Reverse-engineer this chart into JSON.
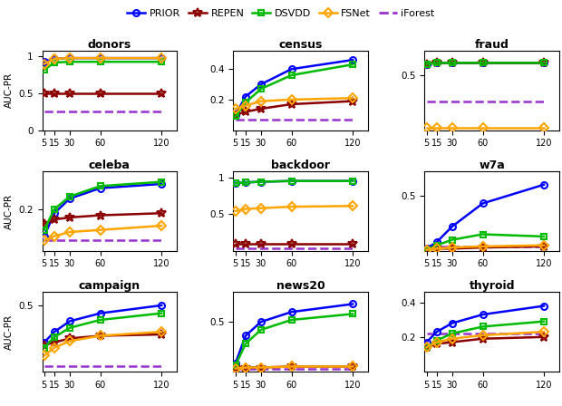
{
  "x": [
    5,
    15,
    30,
    60,
    120
  ],
  "subplots": {
    "donors": {
      "PRIOR": [
        0.93,
        0.97,
        0.98,
        0.98,
        0.98
      ],
      "REPEN": [
        0.5,
        0.5,
        0.5,
        0.5,
        0.5
      ],
      "DSVDD": [
        0.82,
        0.92,
        0.93,
        0.93,
        0.93
      ],
      "FSNet": [
        0.9,
        0.97,
        0.98,
        0.98,
        0.98
      ],
      "iForest": [
        0.25,
        0.25,
        0.25,
        0.25,
        0.25
      ],
      "ylim": [
        0,
        1.08
      ],
      "yticks": [
        0,
        0.5,
        1
      ],
      "yticklabels": [
        "0",
        "0.5",
        "1"
      ]
    },
    "census": {
      "PRIOR": [
        0.1,
        0.22,
        0.3,
        0.4,
        0.46
      ],
      "REPEN": [
        0.1,
        0.12,
        0.14,
        0.17,
        0.19
      ],
      "DSVDD": [
        0.09,
        0.18,
        0.27,
        0.36,
        0.43
      ],
      "FSNet": [
        0.14,
        0.16,
        0.19,
        0.2,
        0.21
      ],
      "iForest": [
        0.07,
        0.07,
        0.07,
        0.07,
        0.07
      ],
      "ylim": [
        0,
        0.52
      ],
      "yticks": [
        0.2,
        0.4
      ],
      "yticklabels": [
        "0.2",
        "0.4"
      ]
    },
    "fraud": {
      "PRIOR": [
        0.6,
        0.61,
        0.61,
        0.61,
        0.61
      ],
      "REPEN": [
        0.6,
        0.61,
        0.61,
        0.61,
        0.61
      ],
      "DSVDD": [
        0.6,
        0.61,
        0.61,
        0.61,
        0.61
      ],
      "FSNet": [
        0.02,
        0.02,
        0.02,
        0.02,
        0.02
      ],
      "iForest": [
        0.26,
        0.26,
        0.26,
        0.26,
        0.26
      ],
      "ylim": [
        0,
        0.72
      ],
      "yticks": [
        0.5
      ],
      "yticklabels": [
        "0.5"
      ]
    },
    "celeba": {
      "PRIOR": [
        0.07,
        0.18,
        0.25,
        0.3,
        0.32
      ],
      "REPEN": [
        0.13,
        0.15,
        0.16,
        0.17,
        0.18
      ],
      "DSVDD": [
        0.1,
        0.2,
        0.26,
        0.31,
        0.33
      ],
      "FSNet": [
        0.05,
        0.07,
        0.09,
        0.1,
        0.12
      ],
      "iForest": [
        0.05,
        0.05,
        0.05,
        0.05,
        0.05
      ],
      "ylim": [
        0,
        0.38
      ],
      "yticks": [
        0.2
      ],
      "yticklabels": [
        "0.2"
      ]
    },
    "backdoor": {
      "PRIOR": [
        0.92,
        0.93,
        0.94,
        0.95,
        0.95
      ],
      "REPEN": [
        0.1,
        0.1,
        0.1,
        0.1,
        0.1
      ],
      "DSVDD": [
        0.92,
        0.93,
        0.94,
        0.95,
        0.95
      ],
      "FSNet": [
        0.54,
        0.57,
        0.58,
        0.6,
        0.61
      ],
      "iForest": [
        0.04,
        0.04,
        0.04,
        0.04,
        0.04
      ],
      "ylim": [
        0,
        1.08
      ],
      "yticks": [
        0.5,
        1.0
      ],
      "yticklabels": [
        "0.5",
        "1"
      ]
    },
    "w7a": {
      "PRIOR": [
        0.02,
        0.08,
        0.22,
        0.43,
        0.6
      ],
      "REPEN": [
        0.01,
        0.02,
        0.02,
        0.03,
        0.04
      ],
      "DSVDD": [
        0.01,
        0.05,
        0.1,
        0.15,
        0.13
      ],
      "FSNet": [
        0.01,
        0.02,
        0.03,
        0.04,
        0.05
      ],
      "iForest": [
        0.04,
        0.04,
        0.04,
        0.04,
        0.04
      ],
      "ylim": [
        0,
        0.72
      ],
      "yticks": [
        0.5
      ],
      "yticklabels": [
        "0.5"
      ]
    },
    "campaign": {
      "PRIOR": [
        0.22,
        0.3,
        0.38,
        0.44,
        0.5
      ],
      "REPEN": [
        0.2,
        0.22,
        0.25,
        0.27,
        0.28
      ],
      "DSVDD": [
        0.18,
        0.26,
        0.33,
        0.39,
        0.44
      ],
      "FSNet": [
        0.12,
        0.18,
        0.23,
        0.27,
        0.3
      ],
      "iForest": [
        0.04,
        0.04,
        0.04,
        0.04,
        0.04
      ],
      "ylim": [
        0,
        0.6
      ],
      "yticks": [
        0.5
      ],
      "yticklabels": [
        "0.5"
      ]
    },
    "news20": {
      "PRIOR": [
        0.08,
        0.36,
        0.5,
        0.6,
        0.68
      ],
      "REPEN": [
        0.04,
        0.04,
        0.04,
        0.05,
        0.05
      ],
      "DSVDD": [
        0.06,
        0.28,
        0.42,
        0.52,
        0.58
      ],
      "FSNet": [
        0.03,
        0.04,
        0.04,
        0.05,
        0.05
      ],
      "iForest": [
        0.03,
        0.03,
        0.03,
        0.03,
        0.03
      ],
      "ylim": [
        0,
        0.8
      ],
      "yticks": [
        0.5
      ],
      "yticklabels": [
        "0.5"
      ]
    },
    "thyroid": {
      "PRIOR": [
        0.17,
        0.23,
        0.28,
        0.33,
        0.38
      ],
      "REPEN": [
        0.14,
        0.16,
        0.17,
        0.19,
        0.2
      ],
      "DSVDD": [
        0.14,
        0.18,
        0.22,
        0.26,
        0.29
      ],
      "FSNet": [
        0.14,
        0.17,
        0.19,
        0.21,
        0.23
      ],
      "iForest": [
        0.22,
        0.22,
        0.22,
        0.22,
        0.22
      ],
      "ylim": [
        0,
        0.46
      ],
      "yticks": [
        0.2,
        0.4
      ],
      "yticklabels": [
        "0.2",
        "0.4"
      ]
    }
  },
  "order": [
    "donors",
    "census",
    "fraud",
    "celeba",
    "backdoor",
    "w7a",
    "campaign",
    "news20",
    "thyroid"
  ],
  "colors": {
    "PRIOR": "#0000ff",
    "REPEN": "#8b0000",
    "DSVDD": "#00bb00",
    "FSNet": "#ffa500",
    "iForest": "#9932cc"
  },
  "markers": {
    "PRIOR": "o",
    "REPEN": "*",
    "DSVDD": "s",
    "FSNet": "D",
    "iForest": "none"
  },
  "markersizes": {
    "PRIOR": 5,
    "REPEN": 7,
    "DSVDD": 5,
    "FSNet": 5,
    "iForest": 0
  }
}
